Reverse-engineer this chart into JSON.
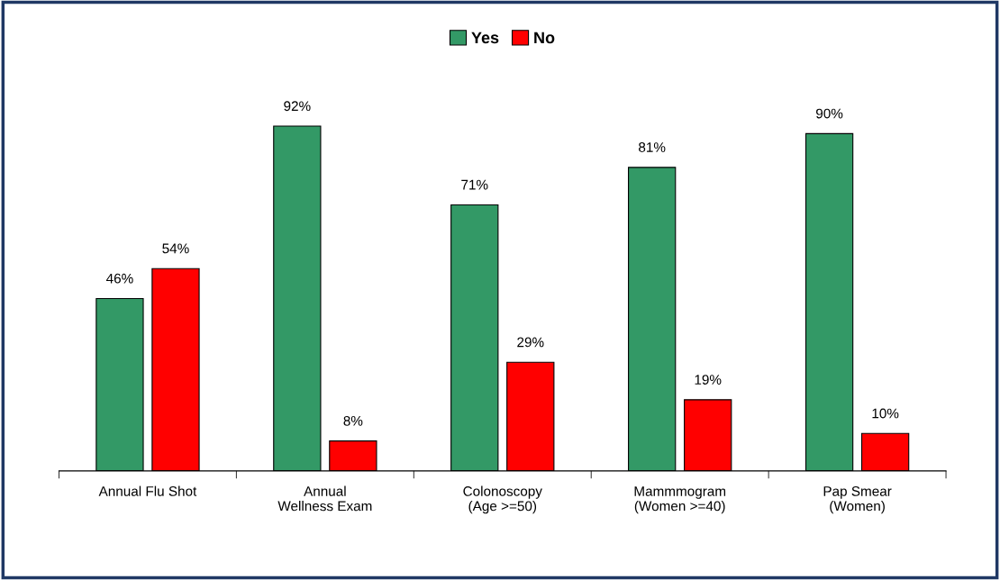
{
  "chart_data": {
    "type": "bar",
    "categories": [
      "Annual Flu Shot",
      "Annual\nWellness Exam",
      "Colonoscopy\n(Age >=50)",
      "Mammmogram\n(Women >=40)",
      "Pap Smear\n(Women)"
    ],
    "series": [
      {
        "name": "Yes",
        "color": "#339966",
        "values": [
          46,
          92,
          71,
          81,
          90
        ],
        "value_labels": [
          "46%",
          "92%",
          "71%",
          "81%",
          "90%"
        ]
      },
      {
        "name": "No",
        "color": "#ff0000",
        "values": [
          54,
          8,
          29,
          19,
          10
        ],
        "value_labels": [
          "54%",
          "8%",
          "29%",
          "19%",
          "10%"
        ]
      }
    ],
    "legend": "top"
  }
}
